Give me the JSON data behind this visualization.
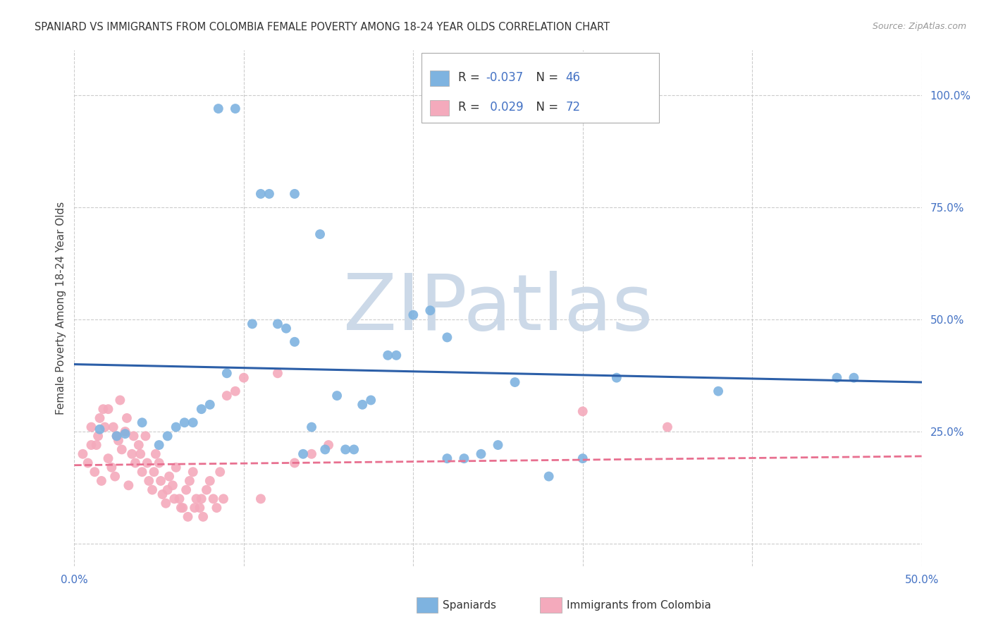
{
  "title": "SPANIARD VS IMMIGRANTS FROM COLOMBIA FEMALE POVERTY AMONG 18-24 YEAR OLDS CORRELATION CHART",
  "source": "Source: ZipAtlas.com",
  "ylabel": "Female Poverty Among 18-24 Year Olds",
  "xlim": [
    0.0,
    0.5
  ],
  "ylim": [
    -0.05,
    1.1
  ],
  "xticks": [
    0.0,
    0.1,
    0.2,
    0.3,
    0.4,
    0.5
  ],
  "xticklabels": [
    "0.0%",
    "",
    "",
    "",
    "",
    "50.0%"
  ],
  "right_yticks": [
    0.0,
    0.25,
    0.5,
    0.75,
    1.0
  ],
  "right_yticklabels": [
    "",
    "25.0%",
    "50.0%",
    "75.0%",
    "100.0%"
  ],
  "blue_color": "#7EB3E0",
  "pink_color": "#F4AABC",
  "blue_line_color": "#2C5FA8",
  "pink_line_color": "#E87090",
  "title_color": "#333333",
  "source_color": "#999999",
  "watermark_text": "ZIPatlas",
  "watermark_color": "#ccd9e8",
  "grid_color": "#cccccc",
  "legend_r_n_color": "#4472C4",
  "legend_label_color": "#333333",
  "blue_scatter_x": [
    0.085,
    0.095,
    0.13,
    0.145,
    0.015,
    0.025,
    0.03,
    0.04,
    0.05,
    0.06,
    0.07,
    0.08,
    0.09,
    0.12,
    0.125,
    0.13,
    0.155,
    0.16,
    0.165,
    0.175,
    0.25,
    0.26,
    0.2,
    0.21,
    0.22,
    0.23,
    0.19,
    0.28,
    0.3,
    0.32,
    0.38,
    0.45,
    0.46,
    0.11,
    0.135,
    0.14,
    0.148,
    0.22,
    0.17,
    0.055,
    0.075,
    0.105,
    0.115,
    0.24,
    0.185,
    0.065
  ],
  "blue_scatter_y": [
    0.97,
    0.97,
    0.78,
    0.69,
    0.255,
    0.24,
    0.245,
    0.27,
    0.22,
    0.26,
    0.27,
    0.31,
    0.38,
    0.49,
    0.48,
    0.45,
    0.33,
    0.21,
    0.21,
    0.32,
    0.22,
    0.36,
    0.51,
    0.52,
    0.46,
    0.19,
    0.42,
    0.15,
    0.19,
    0.37,
    0.34,
    0.37,
    0.37,
    0.78,
    0.2,
    0.26,
    0.21,
    0.19,
    0.31,
    0.24,
    0.3,
    0.49,
    0.78,
    0.2,
    0.42,
    0.27
  ],
  "pink_scatter_x": [
    0.005,
    0.008,
    0.01,
    0.012,
    0.014,
    0.016,
    0.018,
    0.02,
    0.022,
    0.024,
    0.026,
    0.028,
    0.03,
    0.032,
    0.034,
    0.036,
    0.038,
    0.04,
    0.042,
    0.044,
    0.046,
    0.048,
    0.05,
    0.052,
    0.054,
    0.056,
    0.058,
    0.06,
    0.062,
    0.064,
    0.066,
    0.068,
    0.07,
    0.072,
    0.074,
    0.076,
    0.078,
    0.08,
    0.082,
    0.084,
    0.086,
    0.088,
    0.09,
    0.095,
    0.1,
    0.11,
    0.12,
    0.13,
    0.14,
    0.15,
    0.01,
    0.015,
    0.02,
    0.025,
    0.013,
    0.017,
    0.023,
    0.027,
    0.031,
    0.035,
    0.039,
    0.043,
    0.047,
    0.051,
    0.055,
    0.059,
    0.063,
    0.067,
    0.071,
    0.075,
    0.3,
    0.35
  ],
  "pink_scatter_y": [
    0.2,
    0.18,
    0.22,
    0.16,
    0.24,
    0.14,
    0.26,
    0.19,
    0.17,
    0.15,
    0.23,
    0.21,
    0.25,
    0.13,
    0.2,
    0.18,
    0.22,
    0.16,
    0.24,
    0.14,
    0.12,
    0.2,
    0.18,
    0.11,
    0.09,
    0.15,
    0.13,
    0.17,
    0.1,
    0.08,
    0.12,
    0.14,
    0.16,
    0.1,
    0.08,
    0.06,
    0.12,
    0.14,
    0.1,
    0.08,
    0.16,
    0.1,
    0.33,
    0.34,
    0.37,
    0.1,
    0.38,
    0.18,
    0.2,
    0.22,
    0.26,
    0.28,
    0.3,
    0.24,
    0.22,
    0.3,
    0.26,
    0.32,
    0.28,
    0.24,
    0.2,
    0.18,
    0.16,
    0.14,
    0.12,
    0.1,
    0.08,
    0.06,
    0.08,
    0.1,
    0.295,
    0.26
  ],
  "blue_trend_x": [
    0.0,
    0.5
  ],
  "blue_trend_y": [
    0.4,
    0.36
  ],
  "pink_trend_x": [
    0.0,
    0.5
  ],
  "pink_trend_y": [
    0.175,
    0.195
  ],
  "legend_label_blue": "Spaniards",
  "legend_label_pink": "Immigrants from Colombia",
  "legend_blue_r": "-0.037",
  "legend_blue_n": "46",
  "legend_pink_r": "0.029",
  "legend_pink_n": "72"
}
